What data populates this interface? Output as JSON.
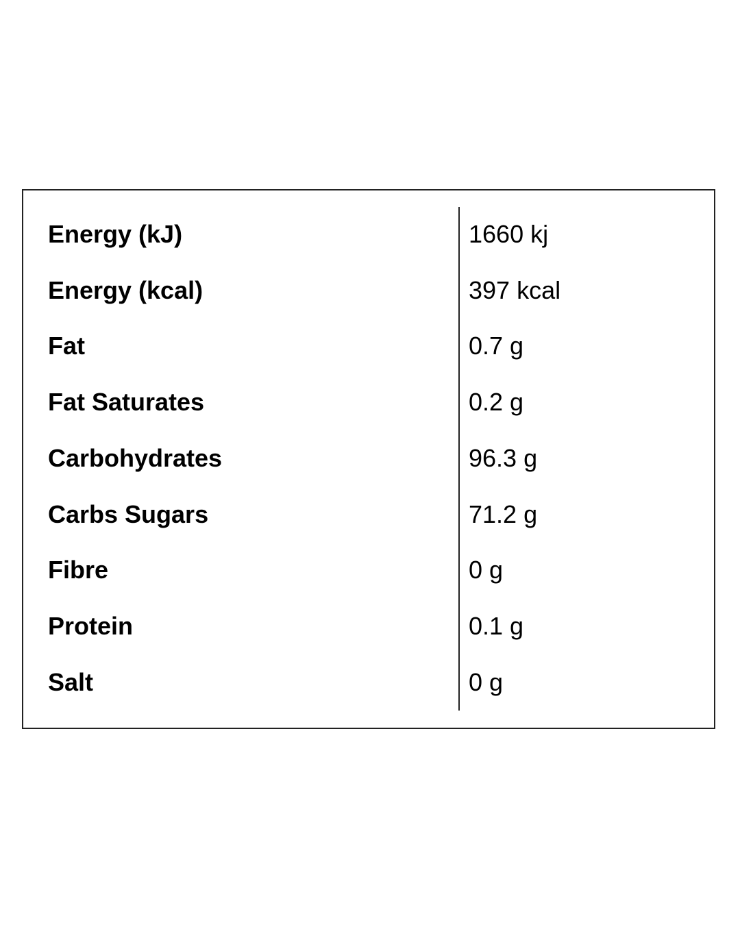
{
  "table": {
    "rows": [
      [
        "Energy (kJ)",
        "1660 kj"
      ],
      [
        "Energy (kcal)",
        "397 kcal"
      ],
      [
        "Fat",
        "0.7 g"
      ],
      [
        "Fat Saturates",
        "0.2 g"
      ],
      [
        "Carbohydrates",
        "96.3 g"
      ],
      [
        "Carbs Sugars",
        "71.2 g"
      ],
      [
        "Fibre",
        "0 g"
      ],
      [
        "Protein",
        "0.1 g"
      ],
      [
        "Salt",
        "0 g"
      ]
    ]
  }
}
